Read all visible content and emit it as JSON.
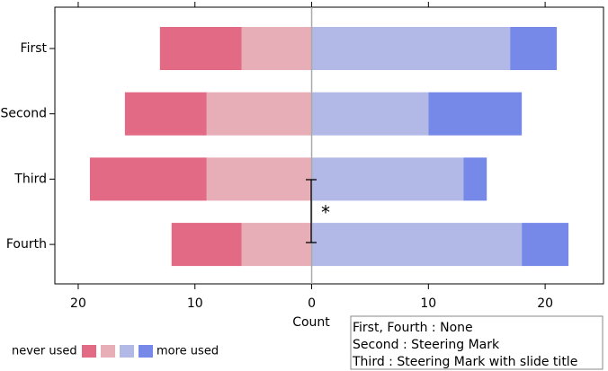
{
  "chart_data": {
    "type": "diverging_bar",
    "xlabel": "Count",
    "categories": [
      "First",
      "Second",
      "Third",
      "Fourth"
    ],
    "series": [
      {
        "color": "#e26a85",
        "values": [
          -7,
          -7,
          -10,
          -6
        ]
      },
      {
        "color": "#e8aeb8",
        "values": [
          -6,
          -9,
          -9,
          -6
        ]
      },
      {
        "color": "#b3b9e7",
        "values": [
          17,
          10,
          13,
          18
        ]
      },
      {
        "color": "#7689e8",
        "values": [
          4,
          8,
          2,
          4
        ]
      }
    ],
    "xlim": [
      -22,
      25
    ],
    "xticks": [
      {
        "value": -20,
        "label": "20"
      },
      {
        "value": -10,
        "label": "10"
      },
      0,
      10,
      20
    ],
    "legend": {
      "left_label": "never used",
      "right_label": "more used"
    },
    "annotation": "*",
    "notes": [
      "First, Fourth : None",
      "Second : Steering Mark",
      "Third : Steering Mark with slide title"
    ]
  }
}
